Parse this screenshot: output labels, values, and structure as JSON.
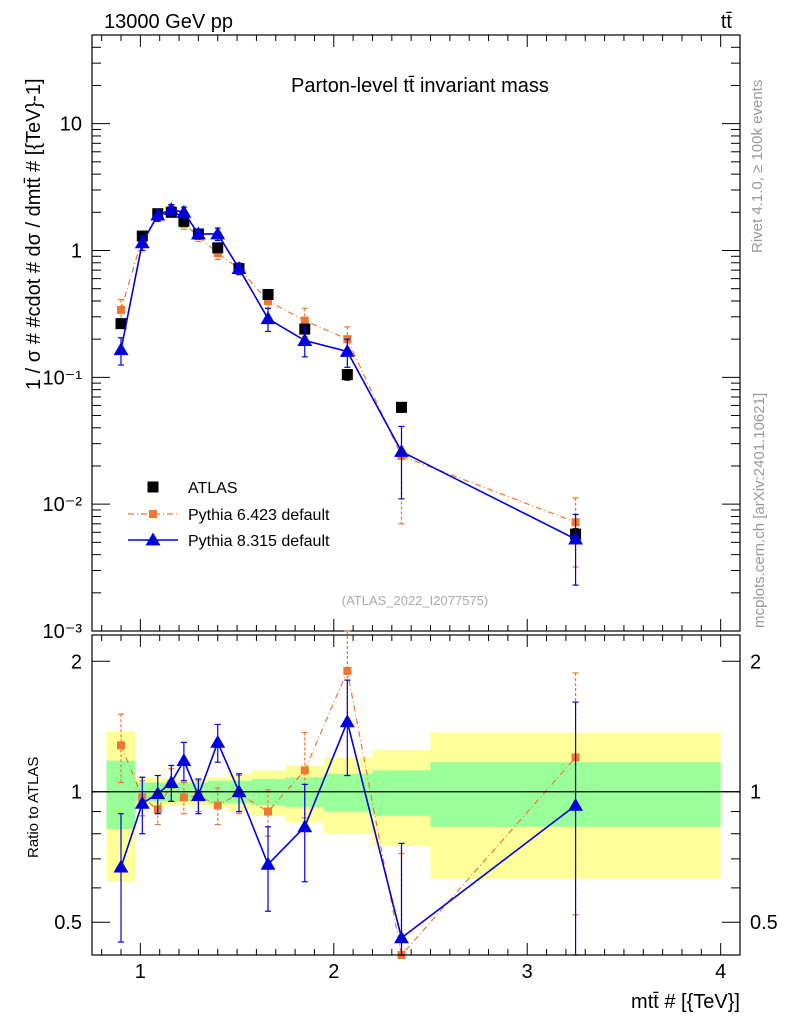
{
  "header": {
    "beam": "13000 GeV pp",
    "process": "tt̄",
    "rivet": "Rivet 4.1.0, ≥ 100k events",
    "site": "mcplots.cern.ch [arXiv:2401.10621]"
  },
  "chart_data": {
    "type": "line",
    "title": "Parton-level tt̄ invariant mass",
    "analysis_tag": "(ATLAS_2022_I2077575)",
    "xlabel": "mtt̄ # [{TeV}]",
    "ylabel": "1 / σ # #cdot # dσ / dmtt̄ # [{TeV}-1]",
    "ratio_ylabel": "Ratio to ATLAS",
    "xlim": [
      0.75,
      4.1
    ],
    "ylim": [
      0.001,
      50
    ],
    "ratio_ylim": [
      0.42,
      2.3
    ],
    "yscale": "log",
    "x_ticks": [
      "1",
      "2",
      "3",
      "4"
    ],
    "y_ticks": [
      "10⁻³",
      "10⁻²",
      "10⁻¹",
      "1",
      "10"
    ],
    "ratio_ticks": [
      "0.5",
      "1",
      "2"
    ],
    "legend": [
      {
        "label": "ATLAS",
        "color": "#000000",
        "marker": "square"
      },
      {
        "label": "Pythia 6.423 default",
        "color": "#ee7733",
        "marker": "square"
      },
      {
        "label": "Pythia 8.315 default",
        "color": "#0000dd",
        "marker": "triangle"
      }
    ],
    "bins": [
      [
        0.825,
        0.975
      ],
      [
        0.975,
        1.05
      ],
      [
        1.05,
        1.125
      ],
      [
        1.125,
        1.19
      ],
      [
        1.19,
        1.26
      ],
      [
        1.26,
        1.35
      ],
      [
        1.35,
        1.45
      ],
      [
        1.45,
        1.575
      ],
      [
        1.575,
        1.75
      ],
      [
        1.75,
        1.95
      ],
      [
        1.95,
        2.2
      ],
      [
        2.2,
        2.5
      ],
      [
        2.5,
        4.0
      ]
    ],
    "x": [
      0.9,
      1.01,
      1.09,
      1.16,
      1.225,
      1.3,
      1.4,
      1.51,
      1.66,
      1.85,
      2.07,
      2.35,
      3.25
    ],
    "series": [
      {
        "name": "ATLAS",
        "values": [
          0.265,
          1.3,
          1.95,
          2.0,
          1.7,
          1.35,
          1.05,
          0.72,
          0.45,
          0.24,
          0.105,
          0.058,
          0.0058
        ],
        "err_lo": [
          0.02,
          0.05,
          0.08,
          0.08,
          0.07,
          0.06,
          0.05,
          0.04,
          0.03,
          0.02,
          0.01,
          0.005,
          0.0006
        ],
        "err_hi": [
          0.02,
          0.05,
          0.08,
          0.08,
          0.07,
          0.06,
          0.05,
          0.04,
          0.03,
          0.02,
          0.01,
          0.005,
          0.0006
        ]
      },
      {
        "name": "Pythia 6.423 default",
        "values": [
          0.34,
          1.25,
          1.85,
          2.1,
          1.62,
          1.3,
          0.95,
          0.72,
          0.4,
          0.28,
          0.2,
          0.024,
          0.0072
        ],
        "err_lo": [
          0.07,
          0.12,
          0.15,
          0.2,
          0.15,
          0.12,
          0.1,
          0.08,
          0.05,
          0.07,
          0.05,
          0.017,
          0.004
        ],
        "err_hi": [
          0.07,
          0.12,
          0.15,
          0.2,
          0.15,
          0.12,
          0.1,
          0.08,
          0.05,
          0.07,
          0.05,
          0.017,
          0.004
        ]
      },
      {
        "name": "Pythia 8.315 default",
        "values": [
          0.165,
          1.15,
          1.9,
          2.1,
          2.0,
          1.35,
          1.35,
          0.72,
          0.29,
          0.195,
          0.16,
          0.026,
          0.0053
        ],
        "err_lo": [
          0.04,
          0.15,
          0.2,
          0.2,
          0.2,
          0.12,
          0.15,
          0.07,
          0.06,
          0.05,
          0.04,
          0.015,
          0.003
        ],
        "err_hi": [
          0.04,
          0.15,
          0.2,
          0.2,
          0.2,
          0.12,
          0.15,
          0.07,
          0.06,
          0.05,
          0.04,
          0.015,
          0.003
        ]
      }
    ],
    "ratio": {
      "series": [
        {
          "name": "Pythia 6.423 default",
          "values": [
            1.28,
            0.97,
            0.91,
            1.04,
            0.97,
            0.98,
            0.93,
            0.99,
            0.9,
            1.12,
            1.9,
            0.42,
            1.2
          ],
          "err_lo": [
            0.23,
            0.09,
            0.07,
            0.09,
            0.08,
            0.08,
            0.09,
            0.1,
            0.11,
            0.25,
            0.45,
            0.3,
            0.68
          ],
          "err_hi": [
            0.23,
            0.09,
            0.07,
            0.09,
            0.08,
            0.08,
            0.09,
            0.1,
            0.11,
            0.25,
            0.45,
            0.3,
            0.68
          ]
        },
        {
          "name": "Pythia 8.315 default",
          "values": [
            0.67,
            0.94,
            0.99,
            1.05,
            1.18,
            0.98,
            1.3,
            1.0,
            0.68,
            0.83,
            1.45,
            0.46,
            0.93
          ],
          "err_lo": [
            0.22,
            0.14,
            0.1,
            0.1,
            0.12,
            0.09,
            0.13,
            0.1,
            0.15,
            0.21,
            0.36,
            0.3,
            0.68
          ],
          "err_hi": [
            0.22,
            0.14,
            0.1,
            0.1,
            0.12,
            0.09,
            0.13,
            0.1,
            0.15,
            0.21,
            0.36,
            0.3,
            0.68
          ]
        }
      ],
      "band_stat": [
        0.18,
        0.05,
        0.05,
        0.05,
        0.05,
        0.05,
        0.06,
        0.06,
        0.07,
        0.08,
        0.1,
        0.12,
        0.17
      ],
      "band_total": [
        0.38,
        0.08,
        0.08,
        0.07,
        0.07,
        0.07,
        0.08,
        0.1,
        0.12,
        0.15,
        0.2,
        0.25,
        0.37
      ],
      "band_colors": {
        "stat": "#99ff99",
        "total": "#ffff99"
      }
    }
  }
}
